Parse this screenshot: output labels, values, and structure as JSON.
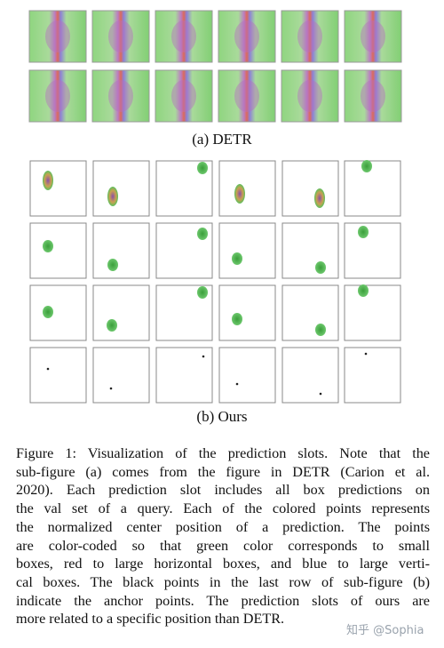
{
  "figure": {
    "subfigures": [
      {
        "label": "(a) DETR"
      },
      {
        "label": "(b) Ours"
      }
    ],
    "caption": {
      "lines": [
        "Figure 1: Visualization of the prediction slots. Note that the",
        "sub-figure (a) comes from the figure in DETR (Carion et al.",
        "2020). Each prediction slot includes all box predictions on",
        "the val set of a query. Each of the colored points represents",
        "the normalized center position of a prediction. The points",
        "are color-coded so that green color corresponds to small",
        "boxes, red to large horizontal boxes, and blue to large verti-",
        "cal boxes. The black points in the last row of sub-figure (b)",
        "indicate the anchor points. The prediction slots of ours are",
        "more related to a specific position than DETR."
      ]
    },
    "watermark": "知乎 @Sophia"
  }
}
